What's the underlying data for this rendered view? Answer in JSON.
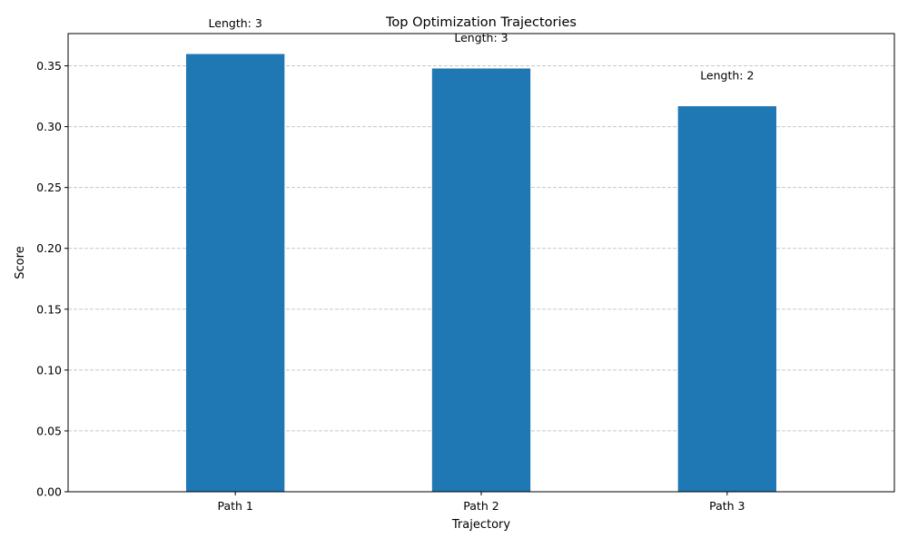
{
  "chart_data": {
    "type": "bar",
    "title": "Top Optimization Trajectories",
    "xlabel": "Trajectory",
    "ylabel": "Score",
    "categories": [
      "Path 1",
      "Path 2",
      "Path 3"
    ],
    "values": [
      0.3597,
      0.3478,
      0.3168
    ],
    "bar_labels": [
      "Length: 3",
      "Length: 3",
      "Length: 2"
    ],
    "ylim": [
      0,
      0.3765
    ],
    "yticks": [
      0.0,
      0.05,
      0.1,
      0.15,
      0.2,
      0.25,
      0.3,
      0.35
    ],
    "ytick_labels": [
      "0.00",
      "0.05",
      "0.10",
      "0.15",
      "0.20",
      "0.25",
      "0.30",
      "0.35"
    ],
    "grid": "y-dashed",
    "bar_color": "#1f77b4",
    "grid_color": "#c8c8c8"
  }
}
